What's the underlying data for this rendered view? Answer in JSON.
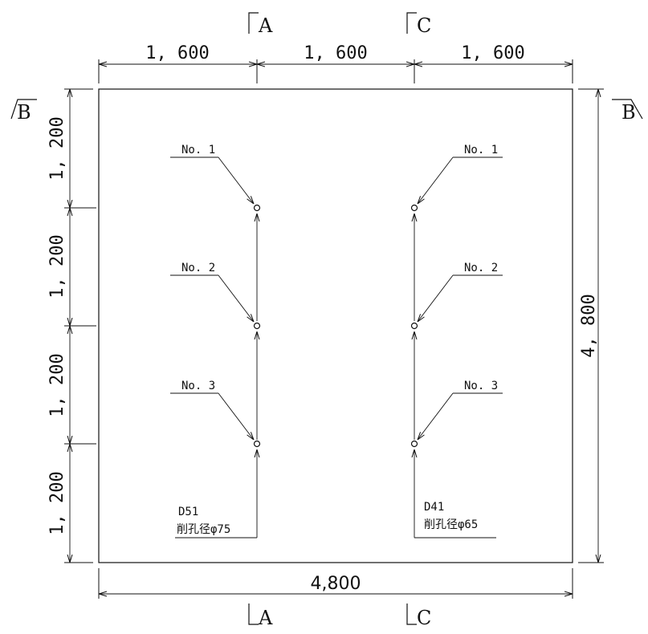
{
  "sections": {
    "top_left": "A",
    "top_right": "C",
    "bottom_left": "A",
    "bottom_right": "C",
    "side_left": "B",
    "side_right": "B"
  },
  "dimensions": {
    "top": [
      "1, 600",
      "1, 600",
      "1, 600"
    ],
    "left": [
      "1, 200",
      "1, 200",
      "1, 200",
      "1, 200"
    ],
    "right": "4, 800",
    "bottom": "4,800"
  },
  "holes": {
    "left_labels": [
      "No. 1",
      "No. 2",
      "No. 3"
    ],
    "right_labels": [
      "No. 1",
      "No. 2",
      "No. 3"
    ]
  },
  "notes": {
    "left_rebar": "D51",
    "left_bore": "削孔径φ75",
    "right_rebar": "D41",
    "right_bore": "削孔径φ65"
  }
}
